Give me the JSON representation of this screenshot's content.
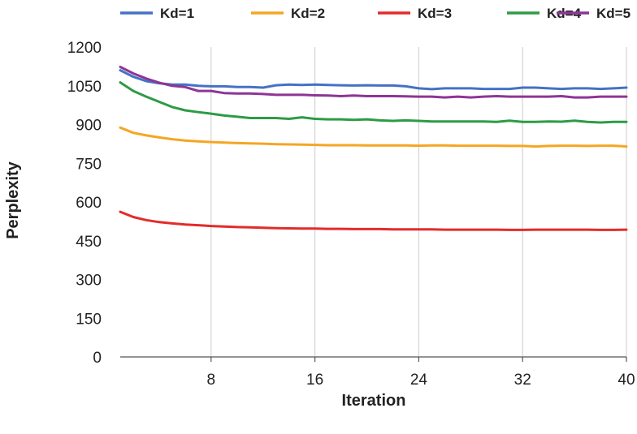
{
  "chart_data": {
    "type": "line",
    "title": "",
    "xlabel": "Iteration",
    "ylabel": "Perplexity",
    "xlim": [
      1,
      40
    ],
    "ylim": [
      0,
      1200
    ],
    "x_ticks": [
      8,
      16,
      24,
      32,
      40
    ],
    "y_ticks": [
      0,
      150,
      300,
      450,
      600,
      750,
      900,
      1050,
      1200
    ],
    "grid": "vertical",
    "legend": "top",
    "x": [
      1,
      2,
      3,
      4,
      5,
      6,
      7,
      8,
      9,
      10,
      11,
      12,
      13,
      14,
      15,
      16,
      17,
      18,
      19,
      20,
      21,
      22,
      23,
      24,
      25,
      26,
      27,
      28,
      29,
      30,
      31,
      32,
      33,
      34,
      35,
      36,
      37,
      38,
      39,
      40
    ],
    "series": [
      {
        "name": "Kd=1",
        "color": "#4472c4",
        "values": [
          1110,
          1085,
          1068,
          1060,
          1055,
          1055,
          1050,
          1048,
          1048,
          1045,
          1045,
          1043,
          1052,
          1055,
          1053,
          1055,
          1053,
          1052,
          1051,
          1052,
          1051,
          1051,
          1048,
          1040,
          1037,
          1040,
          1040,
          1040,
          1038,
          1038,
          1038,
          1043,
          1043,
          1040,
          1038,
          1040,
          1040,
          1038,
          1040,
          1043
        ]
      },
      {
        "name": "Kd=2",
        "color": "#f5a623",
        "values": [
          888,
          868,
          858,
          850,
          843,
          838,
          835,
          832,
          830,
          828,
          827,
          826,
          824,
          823,
          822,
          821,
          820,
          820,
          820,
          819,
          819,
          819,
          819,
          818,
          819,
          819,
          818,
          818,
          818,
          818,
          817,
          817,
          815,
          817,
          818,
          818,
          817,
          818,
          818,
          815
        ]
      },
      {
        "name": "Kd=3",
        "color": "#e32b2b",
        "values": [
          562,
          542,
          530,
          522,
          517,
          513,
          510,
          507,
          505,
          503,
          502,
          500,
          499,
          498,
          497,
          497,
          496,
          496,
          495,
          495,
          495,
          494,
          494,
          494,
          494,
          493,
          493,
          493,
          493,
          493,
          492,
          492,
          493,
          493,
          493,
          493,
          493,
          492,
          492,
          493
        ]
      },
      {
        "name": "Kd=4",
        "color": "#2e9b46",
        "values": [
          1063,
          1030,
          1008,
          988,
          968,
          955,
          948,
          942,
          935,
          930,
          925,
          925,
          925,
          922,
          928,
          922,
          920,
          920,
          918,
          920,
          916,
          914,
          916,
          914,
          912,
          912,
          912,
          912,
          912,
          910,
          915,
          910,
          910,
          912,
          911,
          915,
          910,
          908,
          910,
          910
        ]
      },
      {
        "name": "Kd=5",
        "color": "#8e3596",
        "values": [
          1123,
          1098,
          1078,
          1062,
          1050,
          1045,
          1030,
          1030,
          1022,
          1020,
          1020,
          1018,
          1015,
          1015,
          1015,
          1013,
          1012,
          1010,
          1012,
          1010,
          1010,
          1010,
          1009,
          1008,
          1008,
          1005,
          1008,
          1005,
          1008,
          1010,
          1008,
          1008,
          1008,
          1008,
          1010,
          1005,
          1005,
          1008,
          1008,
          1008
        ]
      }
    ]
  }
}
